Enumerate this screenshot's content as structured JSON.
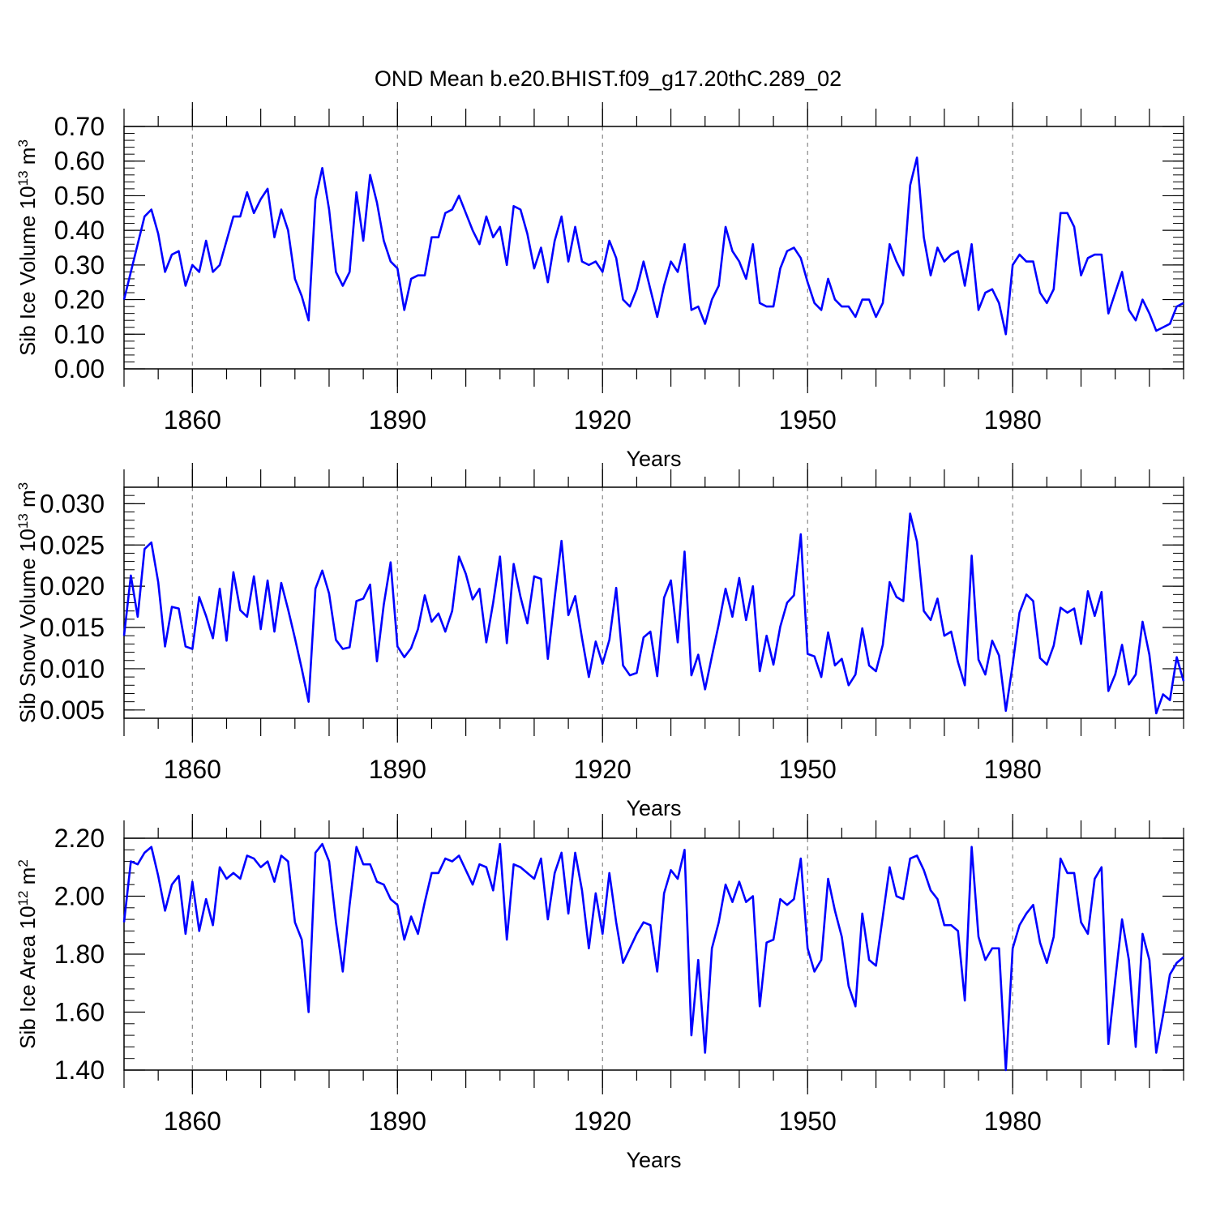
{
  "title": "OND Mean b.e20.BHIST.f09_g17.20thC.289_02",
  "series_color": "#0000ff",
  "chart_data": [
    {
      "type": "line",
      "ylabel": "Sib Ice Volume",
      "unit_base": "10",
      "unit_exp": "13",
      "unit_sym": "m",
      "unit_pow": "3",
      "xlabel": "Years",
      "xlim": [
        1850,
        2005
      ],
      "ylim": [
        0.0,
        0.7
      ],
      "xticks": [
        "1860",
        "1890",
        "1920",
        "1950",
        "1980"
      ],
      "yticks": [
        "0.00",
        "0.10",
        "0.20",
        "0.30",
        "0.40",
        "0.50",
        "0.60",
        "0.70"
      ],
      "ytick_values": [
        0.0,
        0.1,
        0.2,
        0.3,
        0.4,
        0.5,
        0.6,
        0.7
      ],
      "values": [
        0.2,
        0.28,
        0.36,
        0.44,
        0.46,
        0.39,
        0.28,
        0.33,
        0.34,
        0.24,
        0.3,
        0.28,
        0.37,
        0.28,
        0.3,
        0.37,
        0.44,
        0.44,
        0.51,
        0.45,
        0.49,
        0.52,
        0.38,
        0.46,
        0.4,
        0.26,
        0.21,
        0.14,
        0.49,
        0.58,
        0.46,
        0.28,
        0.24,
        0.28,
        0.51,
        0.37,
        0.56,
        0.48,
        0.37,
        0.31,
        0.29,
        0.17,
        0.26,
        0.27,
        0.27,
        0.38,
        0.38,
        0.45,
        0.46,
        0.5,
        0.45,
        0.4,
        0.36,
        0.44,
        0.38,
        0.41,
        0.3,
        0.47,
        0.46,
        0.39,
        0.29,
        0.35,
        0.25,
        0.37,
        0.44,
        0.31,
        0.41,
        0.31,
        0.3,
        0.31,
        0.28,
        0.37,
        0.32,
        0.2,
        0.18,
        0.23,
        0.31,
        0.23,
        0.15,
        0.24,
        0.31,
        0.28,
        0.36,
        0.17,
        0.18,
        0.13,
        0.2,
        0.24,
        0.41,
        0.34,
        0.31,
        0.26,
        0.36,
        0.19,
        0.18,
        0.18,
        0.29,
        0.34,
        0.35,
        0.32,
        0.25,
        0.19,
        0.17,
        0.26,
        0.2,
        0.18,
        0.18,
        0.15,
        0.2,
        0.2,
        0.15,
        0.19,
        0.36,
        0.31,
        0.27,
        0.53,
        0.61,
        0.38,
        0.27,
        0.35,
        0.31,
        0.33,
        0.34,
        0.24,
        0.36,
        0.17,
        0.22,
        0.23,
        0.19,
        0.1,
        0.3,
        0.33,
        0.31,
        0.31,
        0.22,
        0.19,
        0.23,
        0.45,
        0.45,
        0.41,
        0.27,
        0.32,
        0.33,
        0.33,
        0.16,
        0.22,
        0.28,
        0.17,
        0.14,
        0.2,
        0.16,
        0.11,
        0.12,
        0.13,
        0.18,
        0.19
      ]
    },
    {
      "type": "line",
      "ylabel": "Sib Snow Volume",
      "unit_base": "10",
      "unit_exp": "13",
      "unit_sym": "m",
      "unit_pow": "3",
      "xlabel": "Years",
      "xlim": [
        1850,
        2005
      ],
      "ylim": [
        0.004,
        0.032
      ],
      "xticks": [
        "1860",
        "1890",
        "1920",
        "1950",
        "1980"
      ],
      "yticks": [
        "0.005",
        "0.010",
        "0.015",
        "0.020",
        "0.025",
        "0.030"
      ],
      "ytick_values": [
        0.005,
        0.01,
        0.015,
        0.02,
        0.025,
        0.03
      ],
      "values": [
        0.014,
        0.0213,
        0.0163,
        0.0245,
        0.0253,
        0.0205,
        0.0127,
        0.0175,
        0.0173,
        0.0127,
        0.0124,
        0.0187,
        0.0164,
        0.0137,
        0.0197,
        0.0134,
        0.0217,
        0.0171,
        0.0163,
        0.0212,
        0.0148,
        0.0207,
        0.0145,
        0.0204,
        0.0172,
        0.0137,
        0.01,
        0.006,
        0.0197,
        0.0219,
        0.0191,
        0.0135,
        0.0124,
        0.0126,
        0.0182,
        0.0185,
        0.0202,
        0.0109,
        0.0178,
        0.0229,
        0.0127,
        0.0114,
        0.0125,
        0.0148,
        0.0189,
        0.0157,
        0.0167,
        0.0145,
        0.017,
        0.0236,
        0.0215,
        0.0184,
        0.0197,
        0.0132,
        0.018,
        0.0236,
        0.0131,
        0.0227,
        0.0187,
        0.0155,
        0.0212,
        0.0209,
        0.0112,
        0.0186,
        0.0255,
        0.0165,
        0.0188,
        0.0137,
        0.009,
        0.0133,
        0.0106,
        0.0135,
        0.0198,
        0.0104,
        0.0092,
        0.0095,
        0.0138,
        0.0145,
        0.0091,
        0.0186,
        0.0207,
        0.0132,
        0.0242,
        0.0092,
        0.0117,
        0.0075,
        0.0115,
        0.0154,
        0.0197,
        0.0163,
        0.021,
        0.0159,
        0.02,
        0.0097,
        0.014,
        0.0105,
        0.0151,
        0.018,
        0.0189,
        0.0263,
        0.0118,
        0.0115,
        0.009,
        0.0144,
        0.0104,
        0.0112,
        0.008,
        0.0093,
        0.0149,
        0.0104,
        0.0097,
        0.0129,
        0.0205,
        0.0187,
        0.0182,
        0.0288,
        0.0254,
        0.017,
        0.0159,
        0.0185,
        0.014,
        0.0145,
        0.0108,
        0.008,
        0.0237,
        0.0111,
        0.0093,
        0.0134,
        0.0116,
        0.0049,
        0.0105,
        0.0168,
        0.019,
        0.0182,
        0.0113,
        0.0105,
        0.0128,
        0.0174,
        0.0168,
        0.0173,
        0.013,
        0.0194,
        0.0164,
        0.0193,
        0.0073,
        0.0093,
        0.0129,
        0.0081,
        0.0093,
        0.0157,
        0.0117,
        0.0046,
        0.0069,
        0.0062,
        0.0114,
        0.0085
      ]
    },
    {
      "type": "line",
      "ylabel": "Sib Ice Area",
      "unit_base": "10",
      "unit_exp": "12",
      "unit_sym": "m",
      "unit_pow": "2",
      "xlabel": "Years",
      "xlim": [
        1850,
        2005
      ],
      "ylim": [
        1.4,
        2.2
      ],
      "xticks": [
        "1860",
        "1890",
        "1920",
        "1950",
        "1980"
      ],
      "yticks": [
        "1.40",
        "1.60",
        "1.80",
        "2.00",
        "2.20"
      ],
      "ytick_values": [
        1.4,
        1.6,
        1.8,
        2.0,
        2.2
      ],
      "values": [
        1.91,
        2.12,
        2.11,
        2.15,
        2.17,
        2.07,
        1.95,
        2.04,
        2.07,
        1.87,
        2.05,
        1.88,
        1.99,
        1.9,
        2.1,
        2.06,
        2.08,
        2.06,
        2.14,
        2.13,
        2.1,
        2.12,
        2.05,
        2.14,
        2.12,
        1.91,
        1.85,
        1.6,
        2.15,
        2.18,
        2.12,
        1.91,
        1.74,
        1.97,
        2.17,
        2.11,
        2.11,
        2.05,
        2.04,
        1.99,
        1.97,
        1.85,
        1.93,
        1.87,
        1.98,
        2.08,
        2.08,
        2.13,
        2.12,
        2.14,
        2.09,
        2.04,
        2.11,
        2.1,
        2.02,
        2.18,
        1.85,
        2.11,
        2.1,
        2.08,
        2.06,
        2.13,
        1.92,
        2.08,
        2.15,
        1.94,
        2.15,
        2.02,
        1.82,
        2.01,
        1.87,
        2.08,
        1.91,
        1.77,
        1.82,
        1.87,
        1.91,
        1.9,
        1.74,
        2.01,
        2.09,
        2.06,
        2.16,
        1.52,
        1.78,
        1.46,
        1.82,
        1.91,
        2.04,
        1.98,
        2.05,
        1.98,
        2.0,
        1.62,
        1.84,
        1.85,
        1.99,
        1.97,
        1.99,
        2.13,
        1.82,
        1.74,
        1.78,
        2.06,
        1.95,
        1.86,
        1.69,
        1.62,
        1.94,
        1.78,
        1.76,
        1.93,
        2.1,
        2.0,
        1.99,
        2.13,
        2.14,
        2.09,
        2.02,
        1.99,
        1.9,
        1.9,
        1.88,
        1.64,
        2.17,
        1.86,
        1.78,
        1.82,
        1.82,
        1.4,
        1.82,
        1.9,
        1.94,
        1.97,
        1.84,
        1.77,
        1.86,
        2.13,
        2.08,
        2.08,
        1.91,
        1.87,
        2.06,
        2.1,
        1.49,
        1.71,
        1.92,
        1.78,
        1.48,
        1.87,
        1.78,
        1.46,
        1.59,
        1.73,
        1.77,
        1.79
      ]
    }
  ]
}
